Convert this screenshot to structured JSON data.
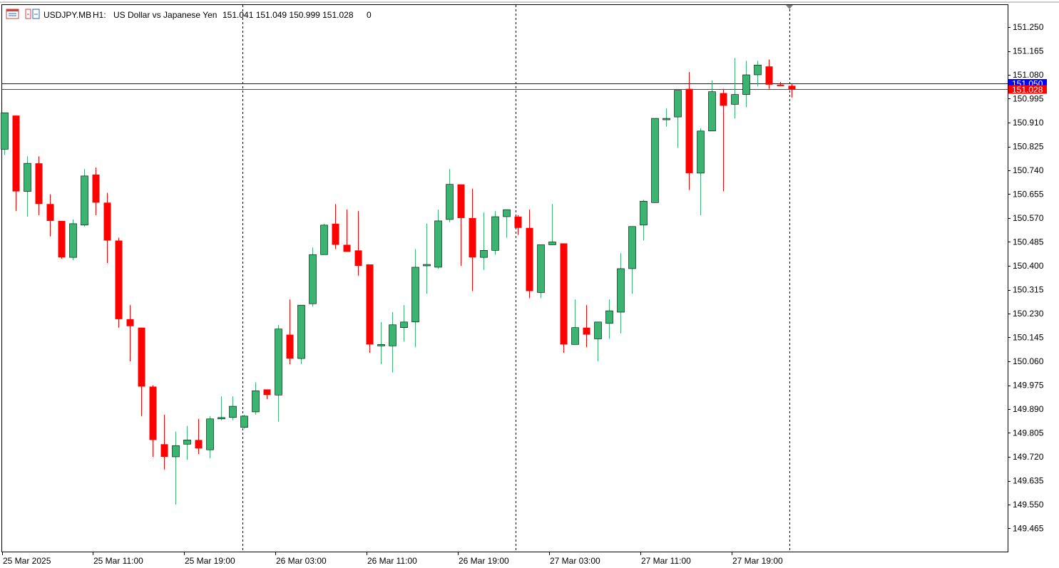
{
  "header": {
    "symbol": "USDJPY.MB",
    "timeframe": "H1:",
    "description": "US Dollar vs Japanese Yen",
    "ohlc": "151.041 151.049 150.999 151.028",
    "volume": "0",
    "icons": [
      "chart-window-icon",
      "one-click-trading-icon"
    ]
  },
  "colors": {
    "bull": "#3cb371",
    "bear": "#ff0000",
    "bid_line": "#0000ff",
    "last_line": "#ff0000",
    "border": "#000000",
    "period_separator": "#000000"
  },
  "price_axis": {
    "labels": [
      "151.250",
      "151.165",
      "151.080",
      "150.995",
      "150.910",
      "150.825",
      "150.740",
      "150.655",
      "150.570",
      "150.485",
      "150.400",
      "150.315",
      "150.230",
      "150.145",
      "150.060",
      "149.975",
      "149.890",
      "149.805",
      "149.720",
      "149.635",
      "149.550",
      "149.465"
    ],
    "bid_badge": "151.050",
    "last_badge": "151.028"
  },
  "time_axis": {
    "labels": [
      "25 Mar 2025",
      "25 Mar 11:00",
      "25 Mar 19:00",
      "26 Mar 03:00",
      "26 Mar 11:00",
      "26 Mar 19:00",
      "27 Mar 03:00",
      "27 Mar 11:00",
      "27 Mar 19:00"
    ]
  },
  "chart_data": {
    "type": "candlestick",
    "title": "USDJPY.MB, H1:  US Dollar vs Japanese Yen",
    "bid": 151.05,
    "last": 151.028,
    "ylim": [
      149.41,
      151.32
    ],
    "candles": [
      {
        "o": 150.815,
        "h": 150.945,
        "l": 150.795,
        "c": 150.945
      },
      {
        "o": 150.935,
        "h": 150.935,
        "l": 150.595,
        "c": 150.665
      },
      {
        "o": 150.665,
        "h": 150.79,
        "l": 150.575,
        "c": 150.765
      },
      {
        "o": 150.765,
        "h": 150.79,
        "l": 150.58,
        "c": 150.62
      },
      {
        "o": 150.62,
        "h": 150.655,
        "l": 150.505,
        "c": 150.56
      },
      {
        "o": 150.56,
        "h": 150.56,
        "l": 150.425,
        "c": 150.43
      },
      {
        "o": 150.43,
        "h": 150.565,
        "l": 150.42,
        "c": 150.55
      },
      {
        "o": 150.545,
        "h": 150.745,
        "l": 150.54,
        "c": 150.72
      },
      {
        "o": 150.725,
        "h": 150.75,
        "l": 150.58,
        "c": 150.625
      },
      {
        "o": 150.625,
        "h": 150.66,
        "l": 150.41,
        "c": 150.49
      },
      {
        "o": 150.49,
        "h": 150.5,
        "l": 150.18,
        "c": 150.21
      },
      {
        "o": 150.21,
        "h": 150.26,
        "l": 150.06,
        "c": 150.185
      },
      {
        "o": 150.18,
        "h": 150.18,
        "l": 149.865,
        "c": 149.97
      },
      {
        "o": 149.97,
        "h": 149.975,
        "l": 149.72,
        "c": 149.78
      },
      {
        "o": 149.765,
        "h": 149.87,
        "l": 149.675,
        "c": 149.72
      },
      {
        "o": 149.72,
        "h": 149.81,
        "l": 149.55,
        "c": 149.76
      },
      {
        "o": 149.765,
        "h": 149.83,
        "l": 149.71,
        "c": 149.78
      },
      {
        "o": 149.78,
        "h": 149.855,
        "l": 149.73,
        "c": 149.75
      },
      {
        "o": 149.745,
        "h": 149.865,
        "l": 149.715,
        "c": 149.855
      },
      {
        "o": 149.855,
        "h": 149.935,
        "l": 149.85,
        "c": 149.86
      },
      {
        "o": 149.86,
        "h": 149.935,
        "l": 149.85,
        "c": 149.9
      },
      {
        "o": 149.825,
        "h": 149.87,
        "l": 149.82,
        "c": 149.865
      },
      {
        "o": 149.88,
        "h": 149.985,
        "l": 149.87,
        "c": 149.955
      },
      {
        "o": 149.96,
        "h": 149.96,
        "l": 149.925,
        "c": 149.94
      },
      {
        "o": 149.94,
        "h": 150.19,
        "l": 149.845,
        "c": 150.175
      },
      {
        "o": 150.155,
        "h": 150.28,
        "l": 150.05,
        "c": 150.07
      },
      {
        "o": 150.07,
        "h": 150.26,
        "l": 150.05,
        "c": 150.26
      },
      {
        "o": 150.265,
        "h": 150.465,
        "l": 150.255,
        "c": 150.44
      },
      {
        "o": 150.44,
        "h": 150.55,
        "l": 150.44,
        "c": 150.545
      },
      {
        "o": 150.55,
        "h": 150.62,
        "l": 150.46,
        "c": 150.475
      },
      {
        "o": 150.475,
        "h": 150.6,
        "l": 150.45,
        "c": 150.45
      },
      {
        "o": 150.455,
        "h": 150.595,
        "l": 150.365,
        "c": 150.4
      },
      {
        "o": 150.405,
        "h": 150.405,
        "l": 150.09,
        "c": 150.12
      },
      {
        "o": 150.12,
        "h": 150.2,
        "l": 150.05,
        "c": 150.12
      },
      {
        "o": 150.115,
        "h": 150.235,
        "l": 150.02,
        "c": 150.19
      },
      {
        "o": 150.18,
        "h": 150.26,
        "l": 150.13,
        "c": 150.2
      },
      {
        "o": 150.2,
        "h": 150.46,
        "l": 150.11,
        "c": 150.395
      },
      {
        "o": 150.4,
        "h": 150.55,
        "l": 150.3,
        "c": 150.405
      },
      {
        "o": 150.395,
        "h": 150.6,
        "l": 150.39,
        "c": 150.56
      },
      {
        "o": 150.565,
        "h": 150.745,
        "l": 150.555,
        "c": 150.69
      },
      {
        "o": 150.69,
        "h": 150.69,
        "l": 150.4,
        "c": 150.57
      },
      {
        "o": 150.57,
        "h": 150.675,
        "l": 150.31,
        "c": 150.43
      },
      {
        "o": 150.43,
        "h": 150.59,
        "l": 150.385,
        "c": 150.455
      },
      {
        "o": 150.455,
        "h": 150.595,
        "l": 150.44,
        "c": 150.575
      },
      {
        "o": 150.575,
        "h": 150.6,
        "l": 150.5,
        "c": 150.6
      },
      {
        "o": 150.575,
        "h": 150.58,
        "l": 150.51,
        "c": 150.535
      },
      {
        "o": 150.535,
        "h": 150.6,
        "l": 150.285,
        "c": 150.31
      },
      {
        "o": 150.305,
        "h": 150.475,
        "l": 150.285,
        "c": 150.475
      },
      {
        "o": 150.475,
        "h": 150.62,
        "l": 150.475,
        "c": 150.485
      },
      {
        "o": 150.48,
        "h": 150.48,
        "l": 150.09,
        "c": 150.12
      },
      {
        "o": 150.12,
        "h": 150.28,
        "l": 150.12,
        "c": 150.18
      },
      {
        "o": 150.18,
        "h": 150.26,
        "l": 150.11,
        "c": 150.155
      },
      {
        "o": 150.14,
        "h": 150.2,
        "l": 150.06,
        "c": 150.2
      },
      {
        "o": 150.195,
        "h": 150.28,
        "l": 150.14,
        "c": 150.24
      },
      {
        "o": 150.235,
        "h": 150.445,
        "l": 150.16,
        "c": 150.39
      },
      {
        "o": 150.39,
        "h": 150.54,
        "l": 150.3,
        "c": 150.54
      },
      {
        "o": 150.545,
        "h": 150.635,
        "l": 150.49,
        "c": 150.63
      },
      {
        "o": 150.625,
        "h": 150.925,
        "l": 150.625,
        "c": 150.925
      },
      {
        "o": 150.925,
        "h": 150.96,
        "l": 150.895,
        "c": 150.925
      },
      {
        "o": 150.93,
        "h": 151.025,
        "l": 150.82,
        "c": 151.025
      },
      {
        "o": 151.03,
        "h": 151.09,
        "l": 150.67,
        "c": 150.73
      },
      {
        "o": 150.73,
        "h": 150.89,
        "l": 150.58,
        "c": 150.88
      },
      {
        "o": 150.88,
        "h": 151.06,
        "l": 150.88,
        "c": 151.02
      },
      {
        "o": 151.015,
        "h": 151.03,
        "l": 150.665,
        "c": 150.97
      },
      {
        "o": 150.975,
        "h": 151.14,
        "l": 150.925,
        "c": 151.01
      },
      {
        "o": 151.01,
        "h": 151.13,
        "l": 150.965,
        "c": 151.08
      },
      {
        "o": 151.08,
        "h": 151.13,
        "l": 151.04,
        "c": 151.115
      },
      {
        "o": 151.11,
        "h": 151.135,
        "l": 151.03,
        "c": 151.045
      },
      {
        "o": 151.045,
        "h": 151.055,
        "l": 151.04,
        "c": 151.04
      },
      {
        "o": 151.041,
        "h": 151.049,
        "l": 150.999,
        "c": 151.028
      }
    ]
  }
}
